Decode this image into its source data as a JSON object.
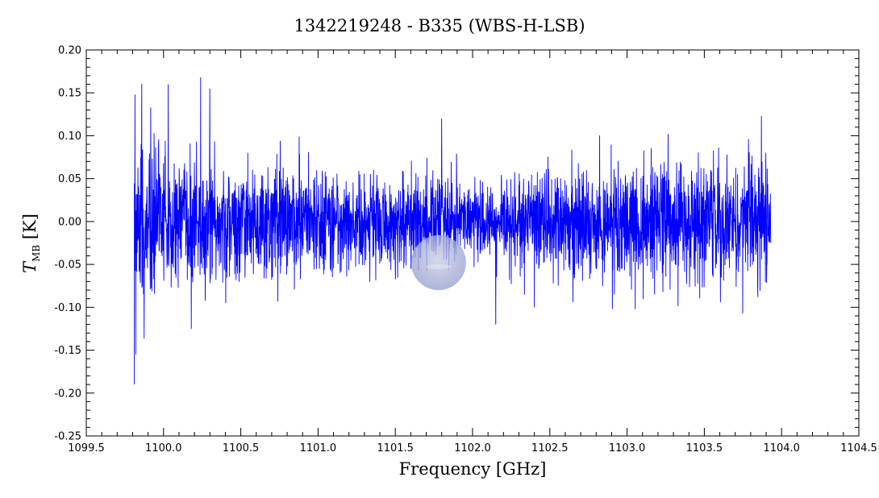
{
  "chart_data": {
    "type": "line",
    "title": "1342219248 - B335 (WBS-H-LSB)",
    "xlabel": "Frequency [GHz]",
    "ylabel": {
      "symbol": "T",
      "subscript": "MB",
      "unit": " [K]"
    },
    "xlim": [
      1099.5,
      1104.5
    ],
    "ylim": [
      -0.25,
      0.2
    ],
    "x_ticks": [
      "1099.5",
      "1100.0",
      "1100.5",
      "1101.0",
      "1101.5",
      "1102.0",
      "1102.5",
      "1103.0",
      "1103.5",
      "1104.0",
      "1104.5"
    ],
    "y_ticks": [
      "0.20",
      "0.15",
      "0.10",
      "0.05",
      "0.00",
      "-0.05",
      "-0.10",
      "-0.15",
      "-0.20",
      "-0.25"
    ],
    "grid": false,
    "series": [
      {
        "color": "#0000ff",
        "x_range": [
          1099.81,
          1103.93
        ],
        "baseline": 0.0,
        "noise_rms": [
          {
            "x": 1099.81,
            "rms": 0.075
          },
          {
            "x": 1100.0,
            "rms": 0.05
          },
          {
            "x": 1100.5,
            "rms": 0.042
          },
          {
            "x": 1101.0,
            "rms": 0.037
          },
          {
            "x": 1101.5,
            "rms": 0.032
          },
          {
            "x": 1102.0,
            "rms": 0.03
          },
          {
            "x": 1102.5,
            "rms": 0.036
          },
          {
            "x": 1103.0,
            "rms": 0.04
          },
          {
            "x": 1103.5,
            "rms": 0.042
          },
          {
            "x": 1103.93,
            "rms": 0.045
          }
        ],
        "extremes": [
          {
            "x": 1099.81,
            "y": -0.19
          },
          {
            "x": 1099.815,
            "y": 0.148
          },
          {
            "x": 1099.82,
            "y": -0.155
          },
          {
            "x": 1100.03,
            "y": 0.16
          },
          {
            "x": 1100.24,
            "y": 0.168
          },
          {
            "x": 1100.3,
            "y": 0.155
          },
          {
            "x": 1100.18,
            "y": -0.125
          },
          {
            "x": 1101.8,
            "y": 0.12
          },
          {
            "x": 1102.15,
            "y": -0.12
          },
          {
            "x": 1102.4,
            "y": -0.1
          },
          {
            "x": 1103.87,
            "y": 0.123
          }
        ]
      }
    ],
    "watermark": {
      "x": 1101.78,
      "y": -0.048
    }
  }
}
